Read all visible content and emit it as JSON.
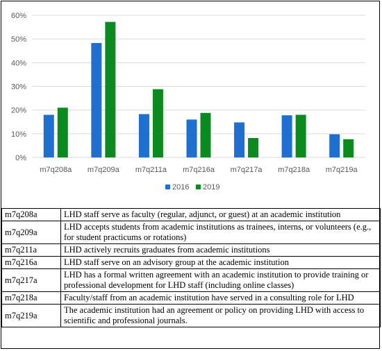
{
  "chart_data": {
    "type": "bar",
    "categories": [
      "m7q208a",
      "m7q209a",
      "m7q211a",
      "m7q216a",
      "m7q217a",
      "m7q218a",
      "m7q219a"
    ],
    "series": [
      {
        "name": "2016",
        "values": [
          18,
          48.3,
          18.3,
          16,
          14.8,
          17.8,
          9.8
        ],
        "color": "#1f6fd1"
      },
      {
        "name": "2019",
        "values": [
          21,
          57.2,
          28.8,
          18.8,
          8.2,
          18,
          7.7
        ],
        "color": "#0a8a1f"
      }
    ],
    "ylim": [
      0,
      60
    ],
    "yticks": [
      "0%",
      "10%",
      "20%",
      "30%",
      "40%",
      "50%",
      "60%"
    ],
    "ytick_values": [
      0,
      10,
      20,
      30,
      40,
      50,
      60
    ],
    "grid": true,
    "legend_position": "bottom"
  },
  "table": {
    "rows": [
      {
        "code": "m7q208a",
        "desc": "LHD staff serve as faculty (regular, adjunct, or guest) at an academic institution"
      },
      {
        "code": "m7q209a",
        "desc": "LHD accepts students from academic institutions as trainees, interns, or volunteers (e.g., for student practicums or rotations)"
      },
      {
        "code": "m7q211a",
        "desc": "LHD actively recruits graduates from academic institutions"
      },
      {
        "code": "m7q216a",
        "desc": "LHD staff serve on an advisory group at the academic institution"
      },
      {
        "code": "m7q217a",
        "desc": "LHD has a formal written agreement with an academic institution to provide training or professional development for LHD staff (including online classes)"
      },
      {
        "code": "m7q218a",
        "desc": "Faculty/staff from an academic institution have served in a consulting role for LHD"
      },
      {
        "code": "m7q219a",
        "desc": "The academic institution had an agreement or policy on providing LHD with access to scientific and professional journals."
      }
    ]
  }
}
